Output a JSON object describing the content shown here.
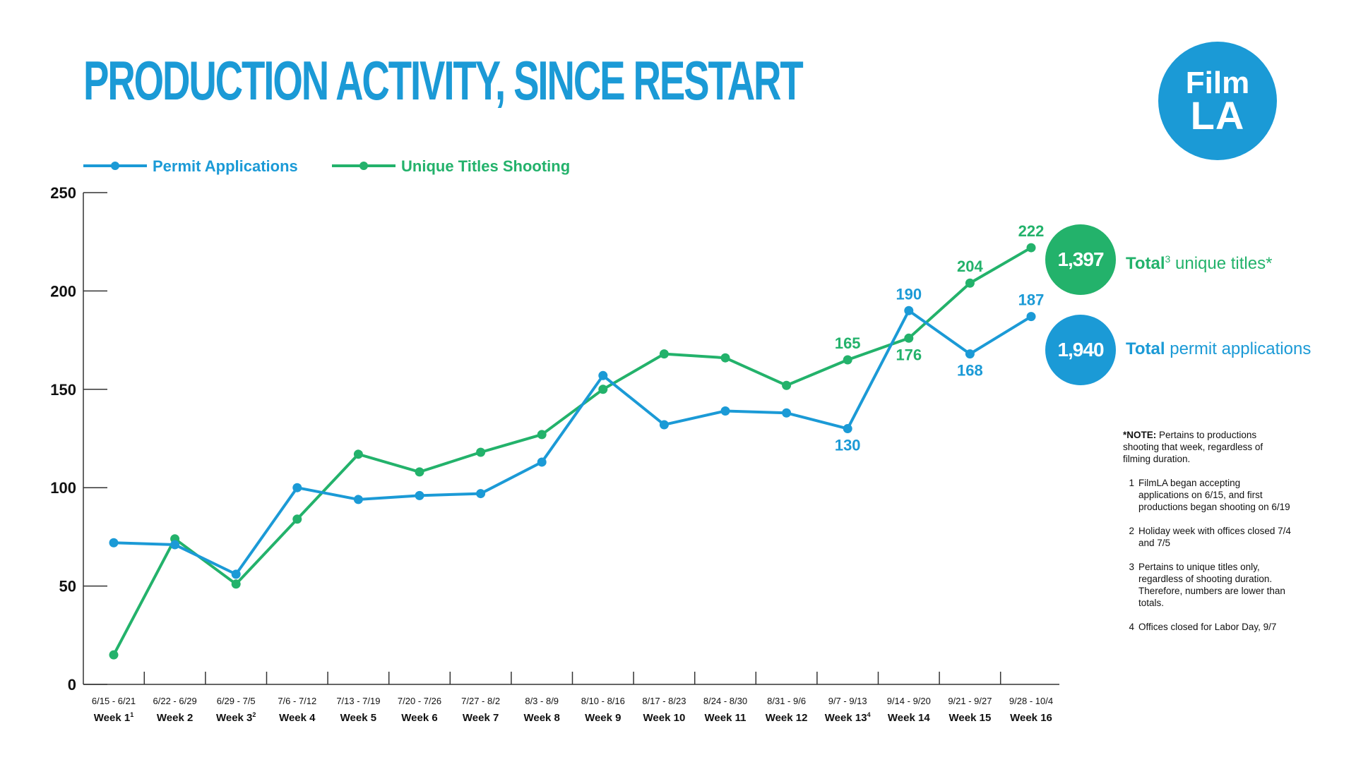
{
  "title": "PRODUCTION ACTIVITY, SINCE RESTART",
  "logo": {
    "line1": "Film",
    "line2": "LA"
  },
  "colors": {
    "blue": "#1b9ad6",
    "green": "#23b26b",
    "axis": "#333333"
  },
  "legend": [
    {
      "label": "Permit Applications",
      "color": "#1b9ad6"
    },
    {
      "label": "Unique Titles Shooting",
      "color": "#23b26b"
    }
  ],
  "totals": {
    "unique": {
      "value": "1,397",
      "bold": "Total",
      "sup": "3",
      "rest": " unique titles*"
    },
    "permits": {
      "value": "1,940",
      "bold": "Total",
      "rest": " permit applications"
    }
  },
  "notes": {
    "note_bold": "*NOTE:",
    "note_text": " Pertains to productions shooting that week, regardless of filming duration.",
    "footnotes": [
      {
        "num": "1",
        "text": "FilmLA began accepting applications on 6/15, and first productions began shooting on 6/19"
      },
      {
        "num": "2",
        "text": "Holiday week with offices closed 7/4 and 7/5"
      },
      {
        "num": "3",
        "text": "Pertains to unique titles only, regardless of shooting duration. Therefore, numbers are lower than totals."
      },
      {
        "num": "4",
        "text": "Offices closed for Labor Day, 9/7"
      }
    ]
  },
  "chart_data": {
    "type": "line",
    "title": "PRODUCTION ACTIVITY, SINCE RESTART",
    "xlabel": "",
    "ylabel": "",
    "ylim": [
      0,
      250
    ],
    "yticks": [
      0,
      50,
      100,
      150,
      200,
      250
    ],
    "grid": false,
    "legend_position": "top-left",
    "categories": [
      {
        "range": "6/15 - 6/21",
        "week": "Week 1",
        "sup": "1"
      },
      {
        "range": "6/22 - 6/29",
        "week": "Week 2",
        "sup": ""
      },
      {
        "range": "6/29 - 7/5",
        "week": "Week 3",
        "sup": "2"
      },
      {
        "range": "7/6 - 7/12",
        "week": "Week 4",
        "sup": ""
      },
      {
        "range": "7/13 - 7/19",
        "week": "Week 5",
        "sup": ""
      },
      {
        "range": "7/20 - 7/26",
        "week": "Week 6",
        "sup": ""
      },
      {
        "range": "7/27 - 8/2",
        "week": "Week 7",
        "sup": ""
      },
      {
        "range": "8/3 - 8/9",
        "week": "Week 8",
        "sup": ""
      },
      {
        "range": "8/10 - 8/16",
        "week": "Week 9",
        "sup": ""
      },
      {
        "range": "8/17 - 8/23",
        "week": "Week 10",
        "sup": ""
      },
      {
        "range": "8/24 - 8/30",
        "week": "Week 11",
        "sup": ""
      },
      {
        "range": "8/31 - 9/6",
        "week": "Week 12",
        "sup": ""
      },
      {
        "range": "9/7 - 9/13",
        "week": "Week 13",
        "sup": "4"
      },
      {
        "range": "9/14 - 9/20",
        "week": "Week 14",
        "sup": ""
      },
      {
        "range": "9/21 - 9/27",
        "week": "Week 15",
        "sup": ""
      },
      {
        "range": "9/28 - 10/4",
        "week": "Week 16",
        "sup": ""
      }
    ],
    "series": [
      {
        "name": "Permit Applications",
        "color": "#1b9ad6",
        "values": [
          72,
          71,
          56,
          100,
          94,
          96,
          97,
          113,
          157,
          132,
          139,
          138,
          130,
          190,
          168,
          187
        ],
        "labels": [
          {
            "index": 12,
            "text": "130",
            "pos": "below"
          },
          {
            "index": 13,
            "text": "190",
            "pos": "above"
          },
          {
            "index": 14,
            "text": "168",
            "pos": "below"
          },
          {
            "index": 15,
            "text": "187",
            "pos": "above"
          }
        ]
      },
      {
        "name": "Unique Titles Shooting",
        "color": "#23b26b",
        "values": [
          15,
          74,
          51,
          84,
          117,
          108,
          118,
          127,
          150,
          168,
          166,
          152,
          165,
          176,
          204,
          222
        ],
        "labels": [
          {
            "index": 12,
            "text": "165",
            "pos": "above"
          },
          {
            "index": 13,
            "text": "176",
            "pos": "below"
          },
          {
            "index": 14,
            "text": "204",
            "pos": "above"
          },
          {
            "index": 15,
            "text": "222",
            "pos": "above"
          }
        ]
      }
    ]
  }
}
